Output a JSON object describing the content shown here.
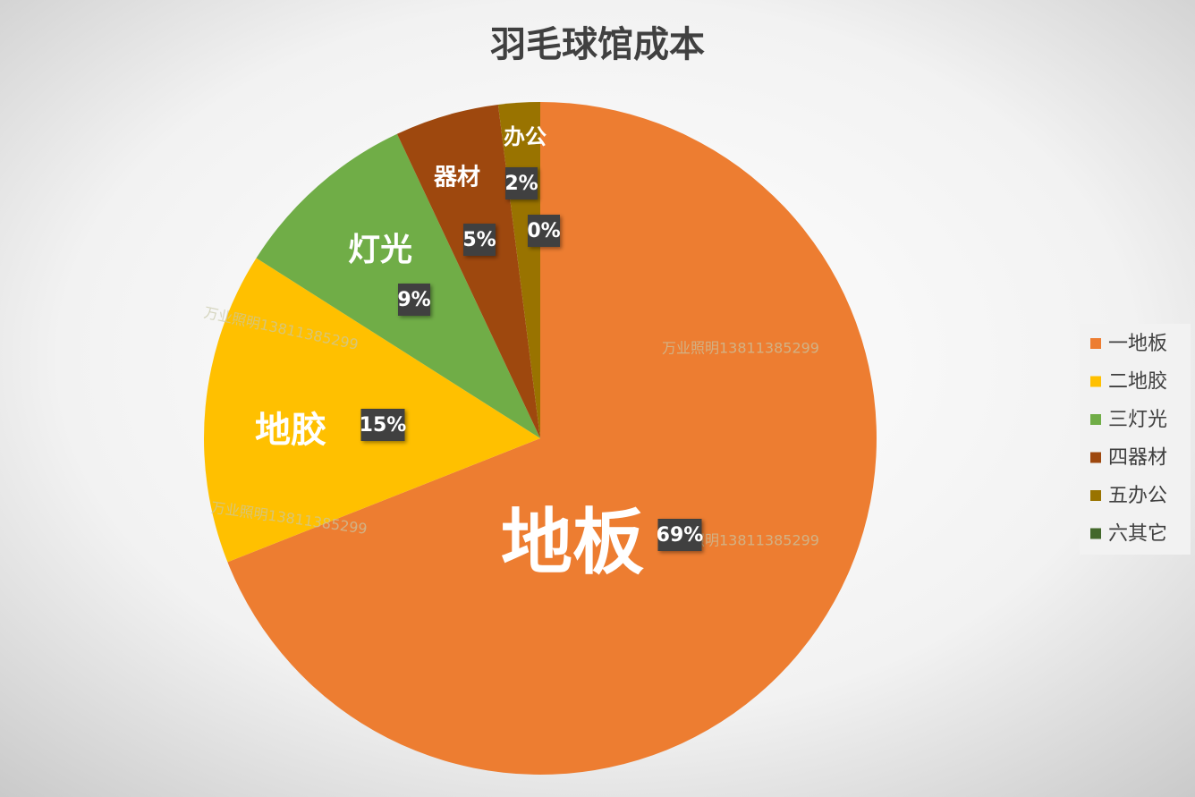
{
  "chart_data": {
    "type": "pie",
    "title": "羽毛球馆成本",
    "categories": [
      "一地板",
      "二地胶",
      "三灯光",
      "四器材",
      "五办公",
      "六其它"
    ],
    "slice_labels": [
      "地板",
      "地胶",
      "灯光",
      "器材",
      "办公",
      null
    ],
    "values": [
      69,
      15,
      9,
      5,
      2,
      0
    ],
    "value_labels": [
      "69%",
      "15%",
      "9%",
      "5%",
      "2%",
      "0%"
    ],
    "colors": [
      "#ED7D31",
      "#FFC000",
      "#70AD47",
      "#9E480E",
      "#997300",
      "#43682B"
    ],
    "legend": "right",
    "watermark": "万业照明13811385299"
  }
}
